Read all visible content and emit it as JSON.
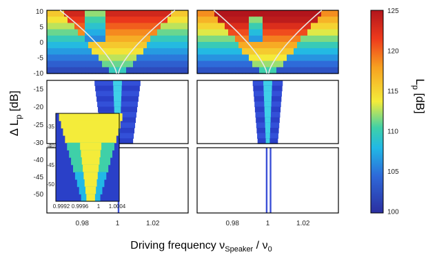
{
  "chart_data": {
    "type": "heatmap",
    "xlabel": "Driving frequency ν",
    "xlabel_sub": "Speaker",
    "xlabel_tail": " / ν",
    "xlabel_tail_sub": "0",
    "ylabel": "Δ L",
    "ylabel_sub": "p",
    "ylabel_tail": " [dB]",
    "colorbar_label": "L",
    "colorbar_label_sub": "p",
    "colorbar_label_tail": " [dB]",
    "colorbar_range": [
      100,
      125
    ],
    "colorbar_ticks": [
      "125",
      "120",
      "115",
      "110",
      "105",
      "100"
    ],
    "xlim": [
      0.96,
      1.04
    ],
    "x_ticks": [
      "0.98",
      "1",
      "1.02"
    ],
    "y_ticks_top": [
      "10",
      "5",
      "0",
      "-5",
      "-10"
    ],
    "y_ticks_mid": [
      "-15",
      "-20",
      "-25",
      "-30"
    ],
    "y_ticks_bot": [
      "-40",
      "-45",
      "-50"
    ],
    "inset": {
      "x_ticks": [
        "0.9992",
        "0.9996",
        "1",
        "1.0004"
      ],
      "y_ticks": [
        "-35",
        "-40",
        "-45",
        "-50"
      ]
    },
    "panels": [
      {
        "name": "left",
        "resonance_x": 1.0,
        "tongue_width_at_10dB": 0.03
      },
      {
        "name": "right",
        "resonance_x": 1.0,
        "tongue_width_at_10dB": 0.03
      }
    ]
  },
  "colors": {
    "low": "#2b2fa0",
    "mid": "#f4ec3a",
    "high": "#b2151c",
    "curve": "#e8e8e8"
  }
}
